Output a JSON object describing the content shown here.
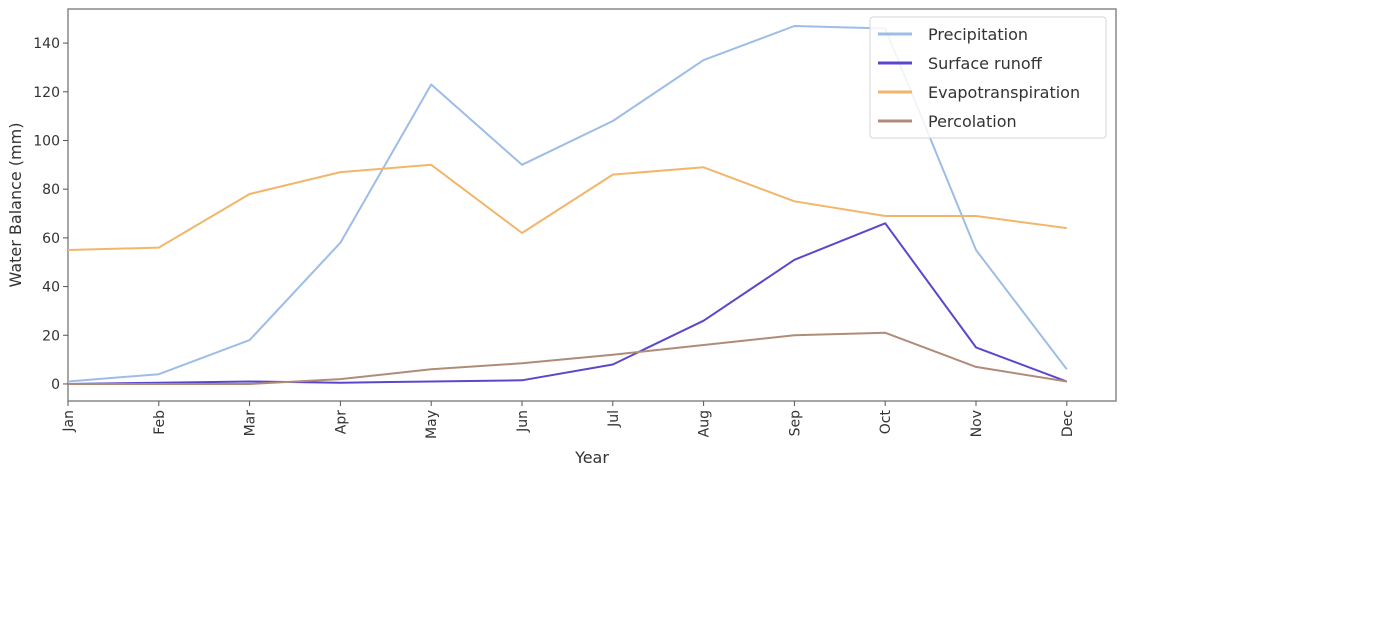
{
  "chart_data": {
    "type": "line",
    "title": "",
    "xlabel": "Year",
    "ylabel": "Water Balance (mm)",
    "categories": [
      "Jan",
      "Feb",
      "Mar",
      "Apr",
      "May",
      "Jun",
      "Jul",
      "Aug",
      "Sep",
      "Oct",
      "Nov",
      "Dec"
    ],
    "ylim": [
      -7,
      154
    ],
    "yticks": [
      0,
      20,
      40,
      60,
      80,
      100,
      120,
      140
    ],
    "grid": false,
    "legend_position": "top-right",
    "series": [
      {
        "name": "Precipitation",
        "color": "#9dbde8",
        "values": [
          1,
          4,
          18,
          58,
          123,
          90,
          108,
          133,
          147,
          146,
          55,
          6
        ]
      },
      {
        "name": "Surface runoff",
        "color": "#5a48cc",
        "values": [
          0,
          0.5,
          1,
          0.5,
          1,
          1.5,
          8,
          26,
          51,
          66,
          15,
          1
        ]
      },
      {
        "name": "Evapotranspiration",
        "color": "#f2b66b",
        "values": [
          55,
          56,
          78,
          87,
          90,
          62,
          86,
          89,
          75,
          69,
          69,
          64
        ]
      },
      {
        "name": "Percolation",
        "color": "#b08c78",
        "values": [
          0,
          0,
          0,
          2,
          6,
          8.5,
          12,
          16,
          20,
          21,
          7,
          1
        ]
      }
    ]
  }
}
